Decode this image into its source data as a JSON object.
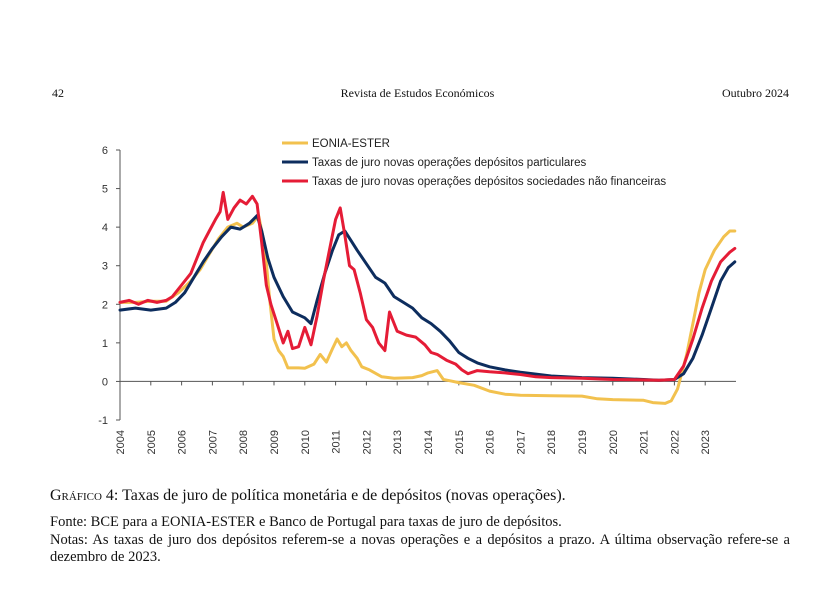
{
  "header": {
    "page_number": "42",
    "journal": "Revista de Estudos Económicos",
    "date": "Outubro 2024"
  },
  "caption": {
    "label": "Gráfico 4:",
    "title": "Taxas de juro de política monetária e de depósitos (novas operações).",
    "source": "Fonte: BCE para a EONIA-ESTER e Banco de Portugal para taxas de juro de depósitos.",
    "notes": "Notas: As taxas de juro dos depósitos referem-se a novas operações e a depósitos a prazo. A última observação refere-se a dezembro de 2023."
  },
  "chart_data": {
    "type": "line",
    "title": "",
    "xlabel": "",
    "ylabel": "",
    "xlim": [
      2004,
      2024
    ],
    "ylim": [
      -1,
      6
    ],
    "yticks": [
      "6",
      "5",
      "4",
      "3",
      "2",
      "1",
      "0",
      "-1"
    ],
    "xticks": [
      "2004",
      "2005",
      "2006",
      "2007",
      "2008",
      "2009",
      "2010",
      "2011",
      "2012",
      "2013",
      "2014",
      "2015",
      "2016",
      "2017",
      "2018",
      "2019",
      "2020",
      "2021",
      "2022",
      "2023"
    ],
    "legend_position": "top-center",
    "series": [
      {
        "name": "EONIA-ESTER",
        "color": "#f2c14e",
        "points": [
          [
            2004.0,
            2.05
          ],
          [
            2004.5,
            2.05
          ],
          [
            2005.0,
            2.08
          ],
          [
            2005.5,
            2.08
          ],
          [
            2005.9,
            2.3
          ],
          [
            2006.3,
            2.6
          ],
          [
            2006.6,
            2.9
          ],
          [
            2006.9,
            3.3
          ],
          [
            2007.2,
            3.7
          ],
          [
            2007.5,
            4.0
          ],
          [
            2007.8,
            4.1
          ],
          [
            2008.0,
            4.0
          ],
          [
            2008.3,
            4.1
          ],
          [
            2008.5,
            4.3
          ],
          [
            2008.7,
            3.5
          ],
          [
            2008.85,
            2.2
          ],
          [
            2009.0,
            1.1
          ],
          [
            2009.15,
            0.8
          ],
          [
            2009.3,
            0.65
          ],
          [
            2009.45,
            0.35
          ],
          [
            2009.8,
            0.35
          ],
          [
            2010.0,
            0.34
          ],
          [
            2010.3,
            0.45
          ],
          [
            2010.5,
            0.7
          ],
          [
            2010.7,
            0.5
          ],
          [
            2010.9,
            0.85
          ],
          [
            2011.05,
            1.1
          ],
          [
            2011.2,
            0.9
          ],
          [
            2011.35,
            1.0
          ],
          [
            2011.5,
            0.8
          ],
          [
            2011.7,
            0.6
          ],
          [
            2011.85,
            0.38
          ],
          [
            2012.1,
            0.3
          ],
          [
            2012.5,
            0.12
          ],
          [
            2012.9,
            0.08
          ],
          [
            2013.5,
            0.1
          ],
          [
            2013.8,
            0.15
          ],
          [
            2014.0,
            0.22
          ],
          [
            2014.3,
            0.28
          ],
          [
            2014.5,
            0.05
          ],
          [
            2014.7,
            0.02
          ],
          [
            2015.0,
            -0.03
          ],
          [
            2015.5,
            -0.1
          ],
          [
            2016.0,
            -0.25
          ],
          [
            2016.5,
            -0.33
          ],
          [
            2017.0,
            -0.36
          ],
          [
            2018.0,
            -0.37
          ],
          [
            2019.0,
            -0.38
          ],
          [
            2019.5,
            -0.45
          ],
          [
            2020.0,
            -0.47
          ],
          [
            2021.0,
            -0.49
          ],
          [
            2021.3,
            -0.55
          ],
          [
            2021.7,
            -0.57
          ],
          [
            2021.9,
            -0.5
          ],
          [
            2022.1,
            -0.2
          ],
          [
            2022.4,
            0.7
          ],
          [
            2022.6,
            1.5
          ],
          [
            2022.8,
            2.3
          ],
          [
            2023.0,
            2.9
          ],
          [
            2023.3,
            3.4
          ],
          [
            2023.6,
            3.75
          ],
          [
            2023.8,
            3.9
          ],
          [
            2023.96,
            3.9
          ]
        ]
      },
      {
        "name": "Taxas de juro novas operações depósitos particulares",
        "color": "#0d2d5e",
        "points": [
          [
            2004.0,
            1.85
          ],
          [
            2004.5,
            1.9
          ],
          [
            2005.0,
            1.85
          ],
          [
            2005.5,
            1.9
          ],
          [
            2005.8,
            2.05
          ],
          [
            2006.1,
            2.3
          ],
          [
            2006.4,
            2.7
          ],
          [
            2006.7,
            3.1
          ],
          [
            2007.0,
            3.45
          ],
          [
            2007.3,
            3.75
          ],
          [
            2007.6,
            4.0
          ],
          [
            2007.9,
            3.95
          ],
          [
            2008.2,
            4.1
          ],
          [
            2008.45,
            4.3
          ],
          [
            2008.6,
            3.9
          ],
          [
            2008.8,
            3.2
          ],
          [
            2009.0,
            2.7
          ],
          [
            2009.3,
            2.2
          ],
          [
            2009.6,
            1.8
          ],
          [
            2010.0,
            1.65
          ],
          [
            2010.2,
            1.5
          ],
          [
            2010.4,
            2.1
          ],
          [
            2010.65,
            2.8
          ],
          [
            2010.9,
            3.4
          ],
          [
            2011.1,
            3.8
          ],
          [
            2011.3,
            3.9
          ],
          [
            2011.5,
            3.65
          ],
          [
            2011.7,
            3.4
          ],
          [
            2012.0,
            3.05
          ],
          [
            2012.3,
            2.7
          ],
          [
            2012.6,
            2.55
          ],
          [
            2012.9,
            2.2
          ],
          [
            2013.2,
            2.05
          ],
          [
            2013.5,
            1.9
          ],
          [
            2013.8,
            1.65
          ],
          [
            2014.1,
            1.5
          ],
          [
            2014.4,
            1.3
          ],
          [
            2014.7,
            1.05
          ],
          [
            2015.0,
            0.75
          ],
          [
            2015.3,
            0.6
          ],
          [
            2015.6,
            0.48
          ],
          [
            2016.0,
            0.38
          ],
          [
            2016.5,
            0.3
          ],
          [
            2017.0,
            0.24
          ],
          [
            2017.5,
            0.19
          ],
          [
            2018.0,
            0.14
          ],
          [
            2019.0,
            0.1
          ],
          [
            2020.0,
            0.08
          ],
          [
            2021.0,
            0.05
          ],
          [
            2021.5,
            0.03
          ],
          [
            2022.0,
            0.05
          ],
          [
            2022.3,
            0.2
          ],
          [
            2022.6,
            0.6
          ],
          [
            2022.9,
            1.2
          ],
          [
            2023.2,
            1.9
          ],
          [
            2023.5,
            2.6
          ],
          [
            2023.75,
            2.95
          ],
          [
            2023.96,
            3.1
          ]
        ]
      },
      {
        "name": "Taxas de juro novas operações depósitos sociedades não financeiras",
        "color": "#e51c36",
        "points": [
          [
            2004.0,
            2.05
          ],
          [
            2004.3,
            2.1
          ],
          [
            2004.6,
            2.0
          ],
          [
            2004.9,
            2.1
          ],
          [
            2005.2,
            2.05
          ],
          [
            2005.5,
            2.1
          ],
          [
            2005.7,
            2.2
          ],
          [
            2006.0,
            2.5
          ],
          [
            2006.3,
            2.8
          ],
          [
            2006.5,
            3.2
          ],
          [
            2006.7,
            3.6
          ],
          [
            2006.9,
            3.9
          ],
          [
            2007.1,
            4.2
          ],
          [
            2007.25,
            4.4
          ],
          [
            2007.35,
            4.9
          ],
          [
            2007.5,
            4.2
          ],
          [
            2007.7,
            4.5
          ],
          [
            2007.9,
            4.7
          ],
          [
            2008.1,
            4.6
          ],
          [
            2008.3,
            4.8
          ],
          [
            2008.45,
            4.6
          ],
          [
            2008.6,
            3.6
          ],
          [
            2008.75,
            2.5
          ],
          [
            2008.9,
            2.0
          ],
          [
            2009.1,
            1.5
          ],
          [
            2009.3,
            1.0
          ],
          [
            2009.45,
            1.3
          ],
          [
            2009.6,
            0.85
          ],
          [
            2009.8,
            0.9
          ],
          [
            2010.0,
            1.4
          ],
          [
            2010.2,
            0.95
          ],
          [
            2010.4,
            1.7
          ],
          [
            2010.6,
            2.6
          ],
          [
            2010.8,
            3.4
          ],
          [
            2011.0,
            4.2
          ],
          [
            2011.15,
            4.5
          ],
          [
            2011.3,
            3.8
          ],
          [
            2011.45,
            3.0
          ],
          [
            2011.6,
            2.9
          ],
          [
            2011.8,
            2.3
          ],
          [
            2012.0,
            1.6
          ],
          [
            2012.2,
            1.4
          ],
          [
            2012.4,
            1.0
          ],
          [
            2012.6,
            0.8
          ],
          [
            2012.75,
            1.8
          ],
          [
            2013.0,
            1.3
          ],
          [
            2013.3,
            1.2
          ],
          [
            2013.6,
            1.15
          ],
          [
            2013.9,
            0.95
          ],
          [
            2014.1,
            0.75
          ],
          [
            2014.3,
            0.7
          ],
          [
            2014.6,
            0.55
          ],
          [
            2014.9,
            0.45
          ],
          [
            2015.1,
            0.3
          ],
          [
            2015.3,
            0.2
          ],
          [
            2015.6,
            0.28
          ],
          [
            2016.0,
            0.25
          ],
          [
            2016.5,
            0.22
          ],
          [
            2017.0,
            0.18
          ],
          [
            2017.5,
            0.12
          ],
          [
            2018.0,
            0.1
          ],
          [
            2019.0,
            0.08
          ],
          [
            2020.0,
            0.05
          ],
          [
            2021.0,
            0.04
          ],
          [
            2021.5,
            0.03
          ],
          [
            2022.0,
            0.05
          ],
          [
            2022.3,
            0.4
          ],
          [
            2022.6,
            1.1
          ],
          [
            2022.9,
            1.9
          ],
          [
            2023.2,
            2.6
          ],
          [
            2023.5,
            3.1
          ],
          [
            2023.8,
            3.35
          ],
          [
            2023.96,
            3.45
          ]
        ]
      }
    ]
  }
}
